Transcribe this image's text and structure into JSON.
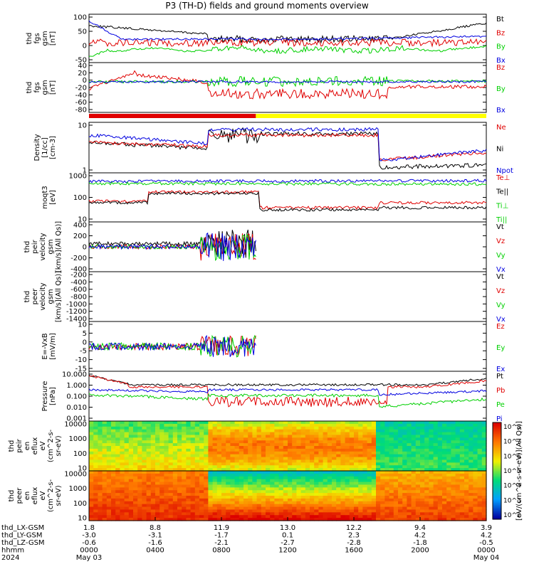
{
  "title": "P3 (TH-D) fields and ground moments overview",
  "chart_data": [
    {
      "type": "line",
      "ylabel": [
        "thd",
        "fgs",
        "gsm",
        "[nT]"
      ],
      "yticks": [
        "100",
        "50",
        "0",
        "-50"
      ],
      "legend": [
        {
          "name": "Bt",
          "color": "#000000"
        },
        {
          "name": "Bz",
          "color": "#e00000"
        },
        {
          "name": "By",
          "color": "#00d000"
        },
        {
          "name": "Bx",
          "color": "#0000e0"
        }
      ]
    },
    {
      "type": "line",
      "ylabel": [
        "thd",
        "fgs",
        "gsm",
        "[nT]"
      ],
      "yticks": [
        "40",
        "20",
        "0",
        "-20",
        "-40",
        "-60",
        "-80"
      ],
      "legend": [
        {
          "name": "Bz",
          "color": "#e00000"
        },
        {
          "name": "By",
          "color": "#00d000"
        },
        {
          "name": "Bx",
          "color": "#0000e0"
        }
      ]
    },
    {
      "type": "line",
      "ylabel": [
        "Density",
        "[1/cc]",
        "[cm-3]"
      ],
      "yticks": [
        "10",
        "1"
      ],
      "legend": [
        {
          "name": "Ne",
          "color": "#e00000"
        },
        {
          "name": "Ni",
          "color": "#000000"
        },
        {
          "name": "Npot",
          "color": "#0000e0"
        }
      ]
    },
    {
      "type": "line",
      "ylabel": [
        "moqt3",
        "[eV]"
      ],
      "yticks": [
        "1000",
        "100",
        "10"
      ],
      "legend": [
        {
          "name": "Te⊥",
          "color": "#e00000"
        },
        {
          "name": "Te||",
          "color": "#000000"
        },
        {
          "name": "Ti⊥",
          "color": "#00d000"
        },
        {
          "name": "Ti||",
          "color": "#00d000"
        }
      ]
    },
    {
      "type": "line",
      "ylabel": [
        "thd",
        "peir",
        "velocity",
        "gsm",
        "[km/s](All Qs)]"
      ],
      "yticks": [
        "400",
        "200",
        "0",
        "-200",
        "-400"
      ],
      "legend": [
        {
          "name": "Vt",
          "color": "#000000"
        },
        {
          "name": "Vz",
          "color": "#e00000"
        },
        {
          "name": "Vy",
          "color": "#00d000"
        },
        {
          "name": "Vx",
          "color": "#0000e0"
        }
      ]
    },
    {
      "type": "line",
      "ylabel": [
        "thd",
        "peer",
        "velocity",
        "gsm",
        "[km/s](All Qs)]"
      ],
      "yticks": [
        "-200",
        "-400",
        "-600",
        "-800",
        "-1000",
        "-1200",
        "-1400"
      ],
      "legend": [
        {
          "name": "Vt",
          "color": "#000000"
        },
        {
          "name": "Vz",
          "color": "#e00000"
        },
        {
          "name": "Vy",
          "color": "#00d000"
        },
        {
          "name": "Vx",
          "color": "#0000e0"
        }
      ]
    },
    {
      "type": "line",
      "ylabel": [
        "E=-VxB",
        "[mV/m]"
      ],
      "yticks": [
        "10",
        "5",
        "0",
        "-5",
        "-10",
        "-15"
      ],
      "legend": [
        {
          "name": "Ez",
          "color": "#e00000"
        },
        {
          "name": "Ey",
          "color": "#00d000"
        },
        {
          "name": "Ex",
          "color": "#0000e0"
        }
      ]
    },
    {
      "type": "line",
      "ylabel": [
        "Pressure",
        "[nPa]"
      ],
      "yticks": [
        "10.000",
        "1.000",
        "0.100",
        "0.010",
        "0.001"
      ],
      "legend": [
        {
          "name": "Pt",
          "color": "#000000"
        },
        {
          "name": "Pb",
          "color": "#e00000"
        },
        {
          "name": "Pe",
          "color": "#00d000"
        },
        {
          "name": "Pi",
          "color": "#0000e0"
        }
      ]
    },
    {
      "type": "heatmap",
      "ylabel": [
        "thd",
        "peir",
        "en",
        "eflux",
        "eV",
        "(cm^2-s-",
        "sr-eV)"
      ],
      "yticks": [
        "10000",
        "1000",
        "100",
        "10"
      ]
    },
    {
      "type": "heatmap",
      "ylabel": [
        "thd",
        "peer",
        "en",
        "eflux",
        "eV",
        "(cm^2-s-",
        "sr-eV)"
      ],
      "yticks": [
        "10000",
        "1000",
        "100",
        "10"
      ]
    }
  ],
  "colorbar": {
    "ticks": [
      "10^8",
      "10^7",
      "10^6",
      "10^5",
      "10^4",
      "10^3",
      "10^2"
    ],
    "label": "[eV/(cm^2-s-sr-eV)](All Qs)]"
  },
  "xaxis": {
    "row_labels": [
      "thd_LX-GSM",
      "thd_LY-GSM",
      "thd_LZ-GSM",
      "hhmm",
      "2024"
    ],
    "columns": [
      [
        "1.8",
        "-3.0",
        "-0.6",
        "0000",
        "May 03"
      ],
      [
        "8.8",
        "-3.1",
        "-1.6",
        "0400",
        ""
      ],
      [
        "11.9",
        "-1.7",
        "-2.1",
        "0800",
        ""
      ],
      [
        "13.0",
        "0.1",
        "-2.7",
        "1200",
        ""
      ],
      [
        "12.2",
        "2.3",
        "-2.8",
        "1600",
        ""
      ],
      [
        "9.4",
        "4.2",
        "-1.8",
        "2000",
        ""
      ],
      [
        "3.9",
        "4.2",
        "-0.5",
        "0000",
        "May 04"
      ]
    ]
  },
  "status_bar_colors": {
    "red": "#e00000",
    "yellow": "#ffff00"
  }
}
